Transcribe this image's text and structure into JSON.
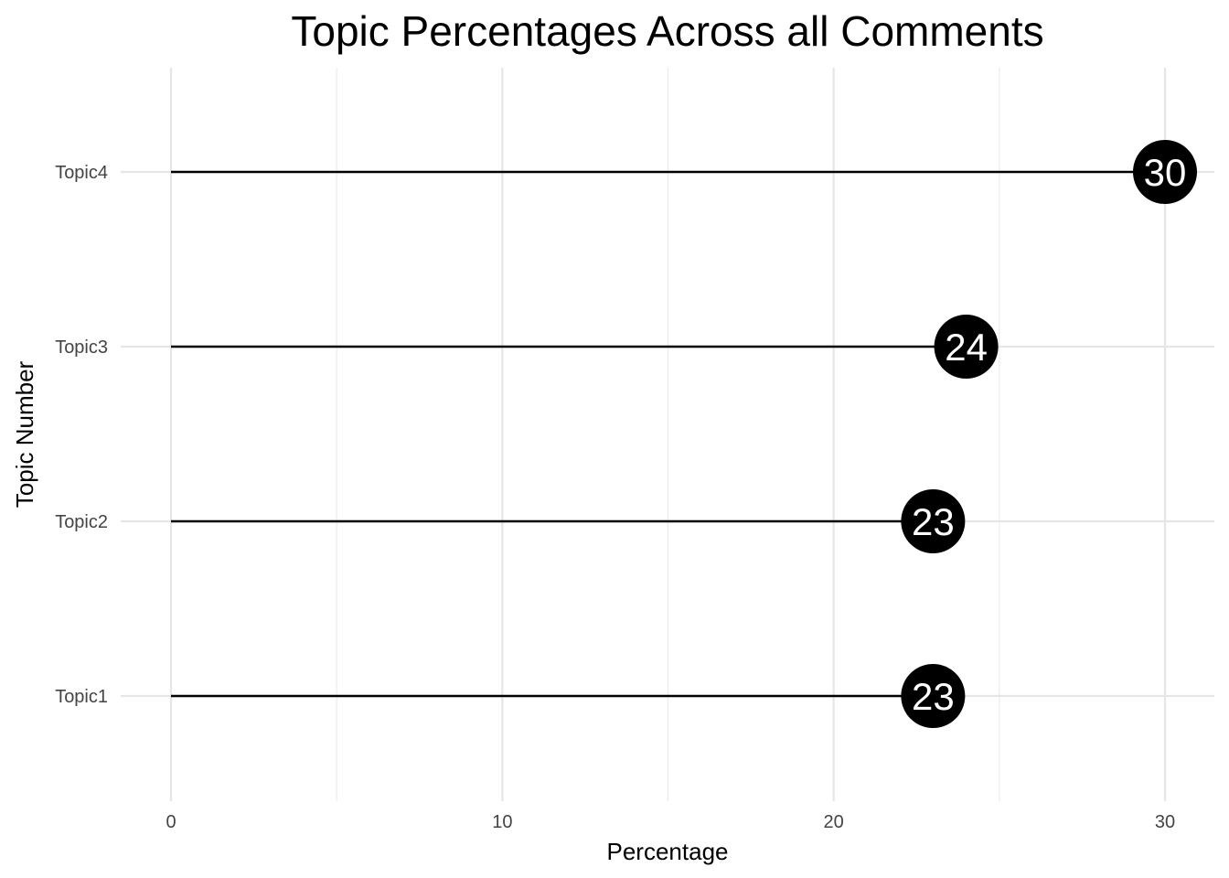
{
  "chart_data": {
    "type": "lollipop",
    "title": "Topic Percentages Across all Comments",
    "xlabel": "Percentage",
    "ylabel": "Topic Number",
    "categories": [
      "Topic1",
      "Topic2",
      "Topic3",
      "Topic4"
    ],
    "values": [
      23,
      23,
      24,
      30
    ],
    "data_labels": [
      "23",
      "23",
      "24",
      "30"
    ],
    "xlim": [
      0,
      31.5
    ],
    "x_ticks": [
      0,
      10,
      20,
      30
    ],
    "x_tick_labels": [
      "0",
      "10",
      "20",
      "30"
    ],
    "grid": true,
    "legend": "none",
    "colors": {
      "marker": "#000000",
      "label_text": "#ffffff",
      "grid": "#e6e6e6"
    }
  }
}
